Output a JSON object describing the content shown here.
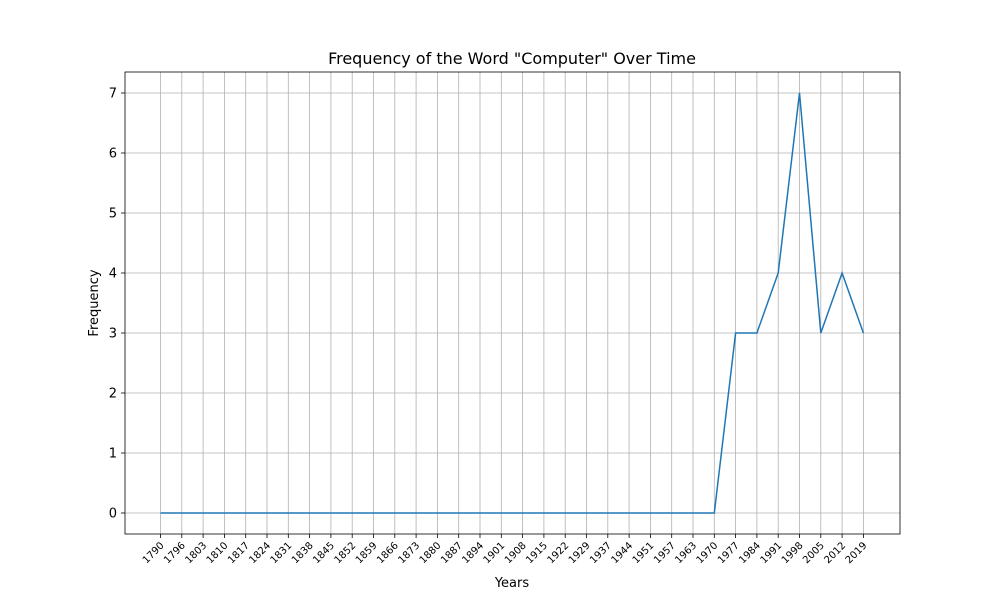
{
  "chart_data": {
    "type": "line",
    "title": "Frequency of the Word \"Computer\" Over Time",
    "xlabel": "Years",
    "ylabel": "Frequency",
    "grid": true,
    "categories": [
      "1790",
      "1796",
      "1803",
      "1810",
      "1817",
      "1824",
      "1831",
      "1838",
      "1845",
      "1852",
      "1859",
      "1866",
      "1873",
      "1880",
      "1887",
      "1894",
      "1901",
      "1908",
      "1915",
      "1922",
      "1929",
      "1937",
      "1944",
      "1951",
      "1957",
      "1963",
      "1970",
      "1977",
      "1984",
      "1991",
      "1998",
      "2005",
      "2012",
      "2019"
    ],
    "series": [
      {
        "values": [
          0,
          0,
          0,
          0,
          0,
          0,
          0,
          0,
          0,
          0,
          0,
          0,
          0,
          0,
          0,
          0,
          0,
          0,
          0,
          0,
          0,
          0,
          0,
          0,
          0,
          0,
          0,
          3,
          3,
          4,
          7,
          3,
          4,
          3
        ],
        "color": "#1f77b4"
      }
    ],
    "ylim": [
      -0.35,
      7.35
    ],
    "yticks": [
      0,
      1,
      2,
      3,
      4,
      5,
      6,
      7
    ]
  }
}
